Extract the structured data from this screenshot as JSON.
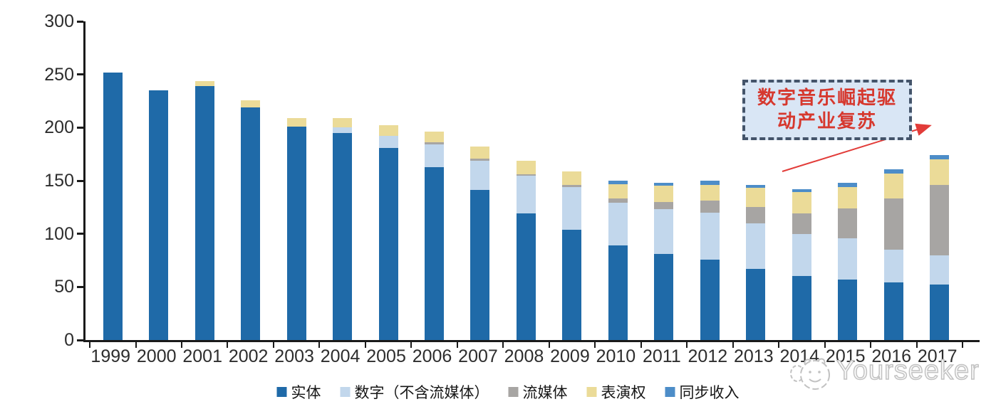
{
  "chart_data": {
    "type": "bar",
    "stacked": true,
    "title": "",
    "xlabel": "",
    "ylabel": "",
    "ylim": [
      0,
      300
    ],
    "yticks": [
      0,
      50,
      100,
      150,
      200,
      250,
      300
    ],
    "grid": false,
    "legend_position": "bottom",
    "categories": [
      "1999",
      "2000",
      "2001",
      "2002",
      "2003",
      "2004",
      "2005",
      "2006",
      "2007",
      "2008",
      "2009",
      "2010",
      "2011",
      "2012",
      "2013",
      "2014",
      "2015",
      "2016",
      "2017"
    ],
    "series": [
      {
        "name": "实体",
        "color": "#1F6AA8",
        "values": [
          252,
          235,
          239,
          219,
          201,
          195,
          181,
          163,
          141,
          119,
          104,
          89,
          81,
          76,
          67,
          60,
          57,
          54,
          52
        ]
      },
      {
        "name": "数字（不含流媒体）",
        "color": "#C2D7EC",
        "values": [
          0,
          0,
          0,
          0,
          0,
          5,
          11,
          21,
          28,
          36,
          40,
          40,
          42,
          44,
          43,
          40,
          39,
          31,
          28
        ]
      },
      {
        "name": "流媒体",
        "color": "#A7A5A3",
        "values": [
          0,
          0,
          0,
          0,
          0,
          0,
          0,
          2,
          2,
          1,
          2,
          4,
          7,
          11,
          15,
          19,
          28,
          48,
          66
        ]
      },
      {
        "name": "表演权",
        "color": "#EBDB98",
        "values": [
          0,
          0,
          5,
          7,
          8,
          9,
          10,
          10,
          11,
          13,
          13,
          14,
          15,
          15,
          18,
          20,
          20,
          24,
          24
        ]
      },
      {
        "name": "同步收入",
        "color": "#4D8DC8",
        "values": [
          0,
          0,
          0,
          0,
          0,
          0,
          0,
          0,
          0,
          0,
          0,
          3,
          3,
          4,
          3,
          3,
          4,
          4,
          4
        ]
      }
    ]
  },
  "annotation": {
    "line1": "数字音乐崛起驱",
    "line2": "动产业复苏",
    "box_fill": "#D9E6F5",
    "border_color": "#44546A",
    "text_color": "#D6382E",
    "arrow_color": "#E23C39"
  },
  "watermark": {
    "text": "Yourseeker",
    "logo": "mascot-face-icon",
    "color": "#C2C2C2"
  },
  "axis": {
    "line_color": "#1A1A1A",
    "label_color": "#2D2D2D"
  }
}
